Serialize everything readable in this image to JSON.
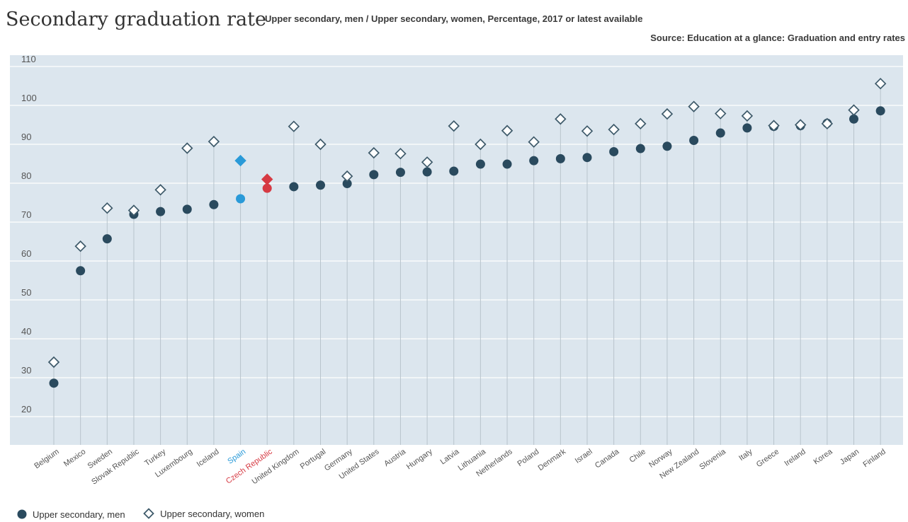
{
  "header": {
    "title": "Secondary graduation rate",
    "subtitle": "Upper secondary, men / Upper secondary, women, Percentage, 2017 or latest available",
    "source": "Source: Education at a glance: Graduation and entry rates"
  },
  "colors": {
    "plot_bg": "#dce6ee",
    "grid": "#ffffff",
    "men": "#2a4a5e",
    "women_stroke": "#3e5a6a",
    "connector": "#b8c4cc",
    "spain": "#2a9ad8",
    "czech": "#d63a43",
    "tick_label": "#555555"
  },
  "chart_data": {
    "type": "scatter",
    "ylim": [
      15,
      114
    ],
    "yticks": [
      20,
      30,
      40,
      50,
      60,
      70,
      80,
      90,
      100,
      110
    ],
    "categories": [
      "Belgium",
      "Mexico",
      "Sweden",
      "Slovak Republic",
      "Turkey",
      "Luxembourg",
      "Iceland",
      "Spain",
      "Czech Republic",
      "United Kingdom",
      "Portugal",
      "Germany",
      "United States",
      "Austria",
      "Hungary",
      "Latvia",
      "Lithuania",
      "Netherlands",
      "Poland",
      "Denmark",
      "Israel",
      "Canada",
      "Chile",
      "Norway",
      "New Zealand",
      "Slovenia",
      "Italy",
      "Greece",
      "Ireland",
      "Korea",
      "Japan",
      "Finland"
    ],
    "highlight": {
      "Spain": "spain",
      "Czech Republic": "czech"
    },
    "series": [
      {
        "name": "Upper secondary, men",
        "marker": "circle",
        "values": [
          28.6,
          57.5,
          65.7,
          72,
          72.7,
          73.3,
          74.5,
          76,
          78.7,
          79.1,
          79.5,
          79.9,
          82.2,
          82.8,
          82.9,
          83.1,
          84.9,
          84.9,
          85.8,
          86.3,
          86.6,
          88.1,
          88.9,
          89.5,
          91,
          92.9,
          94.2,
          94.6,
          94.8,
          95.4,
          96.5,
          98.6
        ]
      },
      {
        "name": "Upper secondary, women",
        "marker": "diamond",
        "values": [
          34,
          63.8,
          73.6,
          73,
          78.3,
          89,
          90.7,
          85.8,
          81,
          94.6,
          90,
          81.8,
          87.8,
          87.6,
          85.4,
          94.7,
          90,
          93.5,
          90.6,
          96.5,
          93.4,
          93.8,
          95.3,
          97.8,
          99.7,
          97.9,
          97.3,
          94.8,
          95,
          95.3,
          98.8,
          105.6
        ]
      }
    ]
  },
  "legend": {
    "men": "Upper secondary, men",
    "women": "Upper secondary, women"
  }
}
